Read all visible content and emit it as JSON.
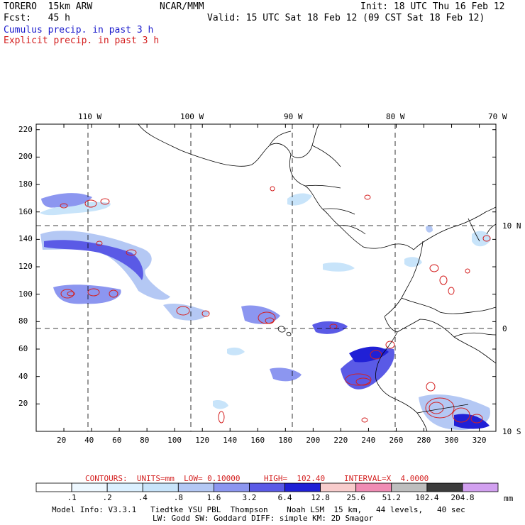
{
  "header": {
    "model": "TORERO  15km ARW",
    "center": "NCAR/MMM",
    "init": "Init: 18 UTC Thu 16 Feb 12",
    "fcst": "Fcst:   45 h",
    "valid": "Valid: 15 UTC Sat 18 Feb 12 (09 CST Sat 18 Feb 12)",
    "line1": "Cumulus precip. in past 3 h",
    "line2": "Explicit precip. in past 3 h",
    "line1_color": "#1c1ccc",
    "line2_color": "#d42020"
  },
  "map": {
    "top_labels": [
      "110 W",
      "100 W",
      "90 W",
      "80 W",
      "70 W"
    ],
    "right_labels": [
      "10 N",
      "0",
      "10 S"
    ],
    "x_ticks": [
      "20",
      "40",
      "60",
      "80",
      "100",
      "120",
      "140",
      "160",
      "180",
      "200",
      "220",
      "240",
      "260",
      "280",
      "300",
      "320"
    ],
    "y_ticks": [
      "20",
      "40",
      "60",
      "80",
      "100",
      "120",
      "140",
      "160",
      "180",
      "200",
      "220"
    ],
    "grid_x": [
      40,
      113,
      184,
      260
    ],
    "grid_y": [
      77,
      150
    ]
  },
  "contour_info": {
    "contours": "CONTOURS:  UNITS=mm  LOW= 0.10000",
    "high": "HIGH=  102.40",
    "interval": "INTERVAL=X  4.0000"
  },
  "legend": {
    "unit": "mm",
    "labels": [
      ".1",
      ".2",
      ".4",
      ".8",
      "1.6",
      "3.2",
      "6.4",
      "12.8",
      "25.6",
      "51.2",
      "102.4",
      "204.8"
    ],
    "colors": [
      "#ffffff",
      "#eef8ff",
      "#dcf0ff",
      "#c8e4fa",
      "#b4c8f4",
      "#8c96f0",
      "#5a5ae6",
      "#2020d6",
      "#f8cccc",
      "#f08cb4",
      "#bebebe",
      "#3c3c3c",
      "#d2a0f0"
    ]
  },
  "footer": {
    "line1": "Model Info: V3.3.1   Tiedtke YSU PBL  Thompson    Noah LSM  15 km,   44 levels,   40 sec",
    "line2": "LW: Godd SW: Goddard DIFF: simple KM: 2D Smagor"
  }
}
